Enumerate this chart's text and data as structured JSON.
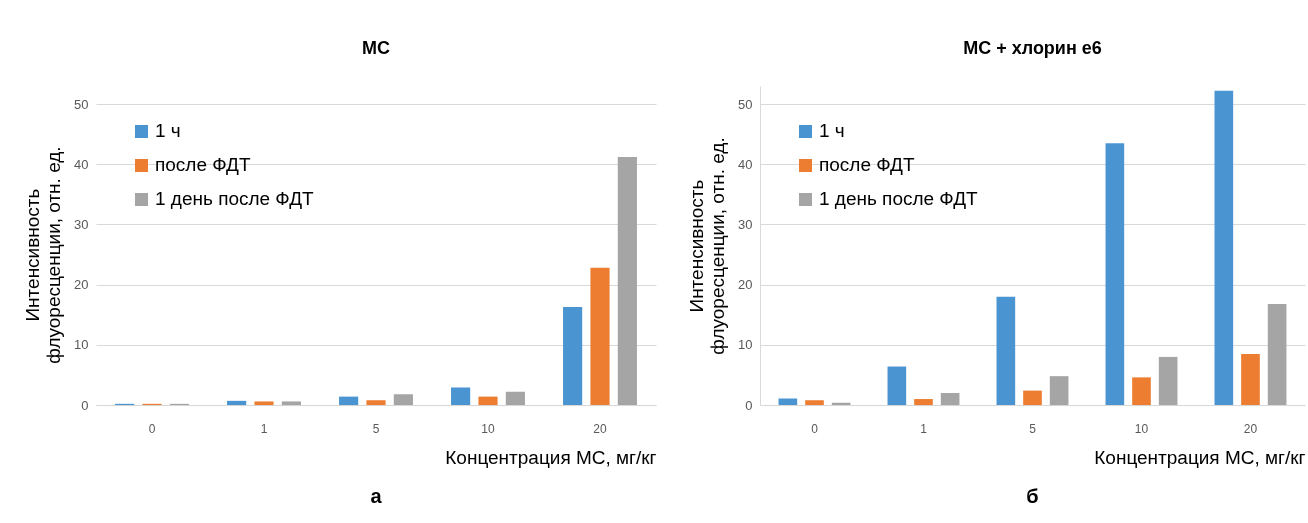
{
  "chart_data": [
    {
      "type": "bar",
      "title": "МС",
      "xlabel": "Концентрация МС, мг/кг",
      "ylabel": "Интенсивность\nфлуоресценции, отн. ед.",
      "annotations": [
        "а"
      ],
      "categories": [
        "0",
        "1",
        "5",
        "10",
        "20"
      ],
      "series": [
        {
          "name": "1 ч",
          "color": "#4a94d2",
          "values": [
            0.2,
            0.7,
            1.4,
            2.9,
            16.3
          ]
        },
        {
          "name": "после ФДТ",
          "color": "#ed7d31",
          "values": [
            0.2,
            0.6,
            0.8,
            1.4,
            22.8
          ]
        },
        {
          "name": "1 день после ФДТ",
          "color": "#a5a5a5",
          "values": [
            0.2,
            0.6,
            1.8,
            2.2,
            41.2
          ]
        }
      ],
      "ylim": [
        0,
        50
      ],
      "yticks": [
        0,
        10,
        20,
        30,
        40,
        50
      ],
      "grid": "y",
      "legend": "top left"
    },
    {
      "type": "bar",
      "title": "МС + хлорин е6",
      "xlabel": "Концентрация МС, мг/кг",
      "ylabel": "Интенсивность\nфлуоресценции, отн. ед.",
      "annotations": [
        "б"
      ],
      "categories": [
        "0",
        "1",
        "5",
        "10",
        "20"
      ],
      "series": [
        {
          "name": "1 ч",
          "color": "#4a94d2",
          "values": [
            1.1,
            6.4,
            18.0,
            43.5,
            52.2
          ]
        },
        {
          "name": "после ФДТ",
          "color": "#ed7d31",
          "values": [
            0.8,
            1.0,
            2.4,
            4.6,
            8.5
          ]
        },
        {
          "name": "1 день после ФДТ",
          "color": "#a5a5a5",
          "values": [
            0.4,
            2.0,
            4.8,
            8.0,
            16.8
          ]
        }
      ],
      "ylim": [
        0,
        53
      ],
      "yticks": [
        0,
        10,
        20,
        30,
        40,
        50
      ],
      "grid": "y",
      "legend": "top left"
    }
  ]
}
